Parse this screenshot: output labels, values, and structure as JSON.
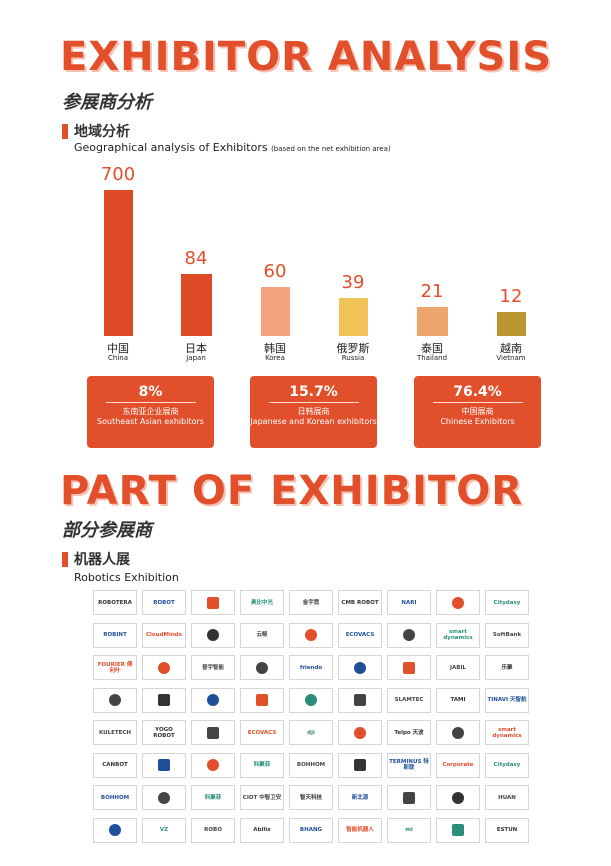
{
  "title": "EXHIBITOR ANALYSIS",
  "title_cn": "参展商分析",
  "geo": {
    "cn": "地域分析",
    "en": "Geographical analysis of Exhibitors",
    "note": "(based on the net exhibition    area)"
  },
  "chart_data": {
    "type": "bar",
    "categories": [
      "中国",
      "日本",
      "韩国",
      "俄罗斯",
      "泰国",
      "越南"
    ],
    "categories_en": [
      "China",
      "Japan",
      "Korea",
      "Russia",
      "Thailand",
      "Vietnam"
    ],
    "values": [
      700,
      84,
      60,
      39,
      21,
      12
    ],
    "colors": [
      "#df4a26",
      "#df4a26",
      "#f4a37f",
      "#f1c357",
      "#eca56d",
      "#b9962f"
    ]
  },
  "stats": [
    {
      "pct": "8%",
      "cn": "东南亚企业展商",
      "en": "Southeast Asian exhibitors"
    },
    {
      "pct": "15.7%",
      "cn": "日韩展商",
      "en": "Japanese and Korean exhibitors"
    },
    {
      "pct": "76.4%",
      "cn": "中国展商",
      "en": "Chinese Exhibitors"
    }
  ],
  "part": {
    "title": "PART OF EXHIBITOR",
    "title_cn": "部分参展商",
    "cn": "机器人展",
    "en": "Robotics Exhibition"
  },
  "logos": [
    [
      "ROBOTERA",
      "ROBOT",
      "",
      "奥比中光",
      "金宇竟",
      "CMB ROBOT",
      "NARI",
      "",
      "Citydasy"
    ],
    [
      "ROBINT",
      "CloudMinds",
      "",
      "云鲸",
      "",
      "ECOVACS",
      "",
      "smart dynamics",
      "SoftBank"
    ],
    [
      "FOURIER 傅利叶",
      "",
      "普宇智能",
      "",
      "friendo",
      "",
      "",
      "JABIL",
      "乐聚"
    ],
    [
      "",
      "",
      "",
      "",
      "",
      "",
      "SLAMTEC",
      "TAMI",
      "TINAVI 天智航"
    ],
    [
      "KULETECH",
      "YOGO ROBOT",
      "",
      "ECOVACS",
      "dji",
      "",
      "Telpo 天波",
      "",
      "smart dynamics"
    ],
    [
      "CANBOT",
      "",
      "",
      "科聚菲",
      "BOHHOM",
      "",
      "TERMINUS 特斯联",
      "Corporate",
      "Citydasy"
    ],
    [
      "BOHHOM",
      "",
      "科聚菲",
      "CIOT 中智卫安",
      "智天科技",
      "新北源",
      "",
      "",
      "HUAN"
    ],
    [
      "",
      "VZ",
      "ROBO",
      "Abilix",
      "BHANG",
      "智能机器人",
      "mi",
      "",
      "ESTUN"
    ]
  ]
}
